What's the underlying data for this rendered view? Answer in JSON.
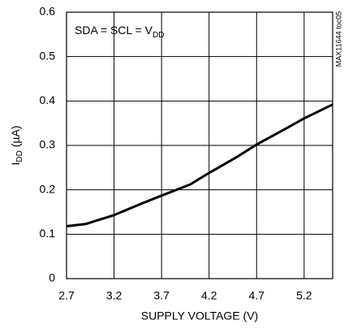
{
  "chart_data": {
    "type": "line",
    "xlabel": "SUPPLY VOLTAGE (V)",
    "ylabel": {
      "text": "I",
      "subscript": "DD",
      "suffix": " (µA)"
    },
    "annotation": {
      "text": "SDA = SCL = V",
      "subscript": "DD"
    },
    "side_note": "MAX11644 toc05",
    "x": [
      2.7,
      2.9,
      3.2,
      3.5,
      3.7,
      4.0,
      4.2,
      4.5,
      4.7,
      5.0,
      5.2,
      5.5
    ],
    "series": [
      {
        "name": "IDD",
        "color": "#000000",
        "values": [
          0.118,
          0.123,
          0.143,
          0.17,
          0.187,
          0.212,
          0.238,
          0.275,
          0.302,
          0.337,
          0.361,
          0.392
        ]
      }
    ],
    "xlim": [
      2.7,
      5.5
    ],
    "xticks": [
      2.7,
      3.2,
      3.7,
      4.2,
      4.7,
      5.2
    ],
    "ylim": [
      0,
      0.6
    ],
    "yticks": [
      0,
      0.1,
      0.2,
      0.3,
      0.4,
      0.5,
      0.6
    ],
    "grid": true
  }
}
